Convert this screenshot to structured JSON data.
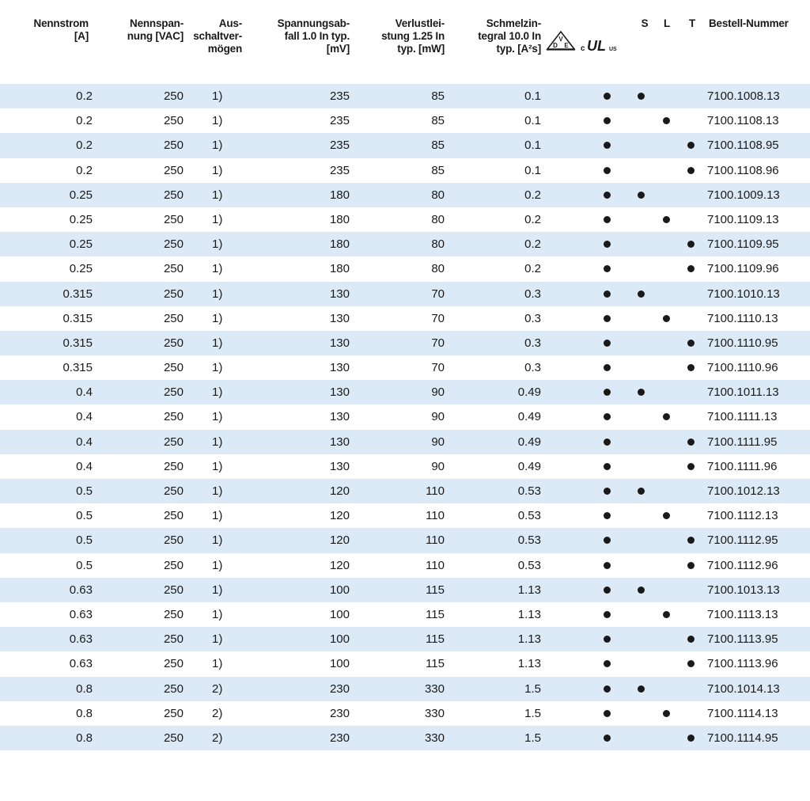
{
  "header": {
    "nennstrom": "Nennstrom\n[A]",
    "nennspannung": "Nennspan-\nnung [VAC]",
    "ausschaltvermoegen": "Aus-\nschaltver-\nmögen",
    "spannungsabfall": "Spannungsab-\nfall 1.0 In typ.\n[mV]",
    "verlustleistung": "Verlustlei-\nstung 1.25 In\ntyp. [mW]",
    "schmelzintegral": "Schmelzin-\ntegral 10.0 In\ntyp. [A²s]",
    "approval_vde": "VDE",
    "approval_c": "c",
    "approval_ul": "UL",
    "approval_us": "us",
    "s": "S",
    "l": "L",
    "t": "T",
    "bestell_nummer": "Bestell-Nummer"
  },
  "rows": [
    {
      "strom": "0.2",
      "spannung": "250",
      "aus": "1)",
      "abfall": "235",
      "verlust": "85",
      "integral": "0.1",
      "vde": true,
      "s": true,
      "l": false,
      "t": false,
      "nr": "7100.1008.13"
    },
    {
      "strom": "0.2",
      "spannung": "250",
      "aus": "1)",
      "abfall": "235",
      "verlust": "85",
      "integral": "0.1",
      "vde": true,
      "s": false,
      "l": true,
      "t": false,
      "nr": "7100.1108.13"
    },
    {
      "strom": "0.2",
      "spannung": "250",
      "aus": "1)",
      "abfall": "235",
      "verlust": "85",
      "integral": "0.1",
      "vde": true,
      "s": false,
      "l": false,
      "t": true,
      "nr": "7100.1108.95"
    },
    {
      "strom": "0.2",
      "spannung": "250",
      "aus": "1)",
      "abfall": "235",
      "verlust": "85",
      "integral": "0.1",
      "vde": true,
      "s": false,
      "l": false,
      "t": true,
      "nr": "7100.1108.96"
    },
    {
      "strom": "0.25",
      "spannung": "250",
      "aus": "1)",
      "abfall": "180",
      "verlust": "80",
      "integral": "0.2",
      "vde": true,
      "s": true,
      "l": false,
      "t": false,
      "nr": "7100.1009.13"
    },
    {
      "strom": "0.25",
      "spannung": "250",
      "aus": "1)",
      "abfall": "180",
      "verlust": "80",
      "integral": "0.2",
      "vde": true,
      "s": false,
      "l": true,
      "t": false,
      "nr": "7100.1109.13"
    },
    {
      "strom": "0.25",
      "spannung": "250",
      "aus": "1)",
      "abfall": "180",
      "verlust": "80",
      "integral": "0.2",
      "vde": true,
      "s": false,
      "l": false,
      "t": true,
      "nr": "7100.1109.95"
    },
    {
      "strom": "0.25",
      "spannung": "250",
      "aus": "1)",
      "abfall": "180",
      "verlust": "80",
      "integral": "0.2",
      "vde": true,
      "s": false,
      "l": false,
      "t": true,
      "nr": "7100.1109.96"
    },
    {
      "strom": "0.315",
      "spannung": "250",
      "aus": "1)",
      "abfall": "130",
      "verlust": "70",
      "integral": "0.3",
      "vde": true,
      "s": true,
      "l": false,
      "t": false,
      "nr": "7100.1010.13"
    },
    {
      "strom": "0.315",
      "spannung": "250",
      "aus": "1)",
      "abfall": "130",
      "verlust": "70",
      "integral": "0.3",
      "vde": true,
      "s": false,
      "l": true,
      "t": false,
      "nr": "7100.1110.13"
    },
    {
      "strom": "0.315",
      "spannung": "250",
      "aus": "1)",
      "abfall": "130",
      "verlust": "70",
      "integral": "0.3",
      "vde": true,
      "s": false,
      "l": false,
      "t": true,
      "nr": "7100.1110.95"
    },
    {
      "strom": "0.315",
      "spannung": "250",
      "aus": "1)",
      "abfall": "130",
      "verlust": "70",
      "integral": "0.3",
      "vde": true,
      "s": false,
      "l": false,
      "t": true,
      "nr": "7100.1110.96"
    },
    {
      "strom": "0.4",
      "spannung": "250",
      "aus": "1)",
      "abfall": "130",
      "verlust": "90",
      "integral": "0.49",
      "vde": true,
      "s": true,
      "l": false,
      "t": false,
      "nr": "7100.1011.13"
    },
    {
      "strom": "0.4",
      "spannung": "250",
      "aus": "1)",
      "abfall": "130",
      "verlust": "90",
      "integral": "0.49",
      "vde": true,
      "s": false,
      "l": true,
      "t": false,
      "nr": "7100.1111.13"
    },
    {
      "strom": "0.4",
      "spannung": "250",
      "aus": "1)",
      "abfall": "130",
      "verlust": "90",
      "integral": "0.49",
      "vde": true,
      "s": false,
      "l": false,
      "t": true,
      "nr": "7100.1111.95"
    },
    {
      "strom": "0.4",
      "spannung": "250",
      "aus": "1)",
      "abfall": "130",
      "verlust": "90",
      "integral": "0.49",
      "vde": true,
      "s": false,
      "l": false,
      "t": true,
      "nr": "7100.1111.96"
    },
    {
      "strom": "0.5",
      "spannung": "250",
      "aus": "1)",
      "abfall": "120",
      "verlust": "110",
      "integral": "0.53",
      "vde": true,
      "s": true,
      "l": false,
      "t": false,
      "nr": "7100.1012.13"
    },
    {
      "strom": "0.5",
      "spannung": "250",
      "aus": "1)",
      "abfall": "120",
      "verlust": "110",
      "integral": "0.53",
      "vde": true,
      "s": false,
      "l": true,
      "t": false,
      "nr": "7100.1112.13"
    },
    {
      "strom": "0.5",
      "spannung": "250",
      "aus": "1)",
      "abfall": "120",
      "verlust": "110",
      "integral": "0.53",
      "vde": true,
      "s": false,
      "l": false,
      "t": true,
      "nr": "7100.1112.95"
    },
    {
      "strom": "0.5",
      "spannung": "250",
      "aus": "1)",
      "abfall": "120",
      "verlust": "110",
      "integral": "0.53",
      "vde": true,
      "s": false,
      "l": false,
      "t": true,
      "nr": "7100.1112.96"
    },
    {
      "strom": "0.63",
      "spannung": "250",
      "aus": "1)",
      "abfall": "100",
      "verlust": "115",
      "integral": "1.13",
      "vde": true,
      "s": true,
      "l": false,
      "t": false,
      "nr": "7100.1013.13"
    },
    {
      "strom": "0.63",
      "spannung": "250",
      "aus": "1)",
      "abfall": "100",
      "verlust": "115",
      "integral": "1.13",
      "vde": true,
      "s": false,
      "l": true,
      "t": false,
      "nr": "7100.1113.13"
    },
    {
      "strom": "0.63",
      "spannung": "250",
      "aus": "1)",
      "abfall": "100",
      "verlust": "115",
      "integral": "1.13",
      "vde": true,
      "s": false,
      "l": false,
      "t": true,
      "nr": "7100.1113.95"
    },
    {
      "strom": "0.63",
      "spannung": "250",
      "aus": "1)",
      "abfall": "100",
      "verlust": "115",
      "integral": "1.13",
      "vde": true,
      "s": false,
      "l": false,
      "t": true,
      "nr": "7100.1113.96"
    },
    {
      "strom": "0.8",
      "spannung": "250",
      "aus": "2)",
      "abfall": "230",
      "verlust": "330",
      "integral": "1.5",
      "vde": true,
      "s": true,
      "l": false,
      "t": false,
      "nr": "7100.1014.13"
    },
    {
      "strom": "0.8",
      "spannung": "250",
      "aus": "2)",
      "abfall": "230",
      "verlust": "330",
      "integral": "1.5",
      "vde": true,
      "s": false,
      "l": true,
      "t": false,
      "nr": "7100.1114.13"
    },
    {
      "strom": "0.8",
      "spannung": "250",
      "aus": "2)",
      "abfall": "230",
      "verlust": "330",
      "integral": "1.5",
      "vde": true,
      "s": false,
      "l": false,
      "t": true,
      "nr": "7100.1114.95"
    }
  ],
  "colors": {
    "shade": "#dce9f6",
    "text": "#1a1a1a"
  }
}
